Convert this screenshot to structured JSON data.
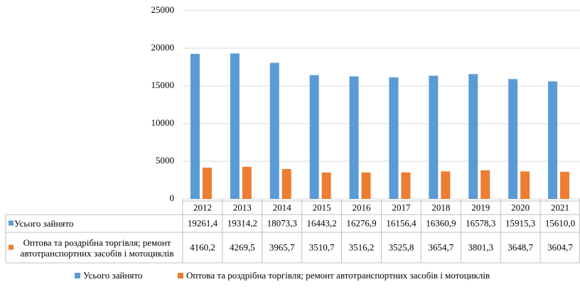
{
  "chart_data": {
    "type": "bar",
    "categories": [
      "2012",
      "2013",
      "2014",
      "2015",
      "2016",
      "2017",
      "2018",
      "2019",
      "2020",
      "2021"
    ],
    "series": [
      {
        "name": "Усього зайнято",
        "color": "#5b9bd5",
        "values": [
          19261.4,
          19314.2,
          18073.3,
          16443.2,
          16276.9,
          16156.4,
          16360.9,
          16578.3,
          15915.3,
          15610.0
        ],
        "value_labels": [
          "19261,4",
          "19314,2",
          "18073,3",
          "16443,2",
          "16276,9",
          "16156,4",
          "16360,9",
          "16578,3",
          "15915,3",
          "15610,0"
        ]
      },
      {
        "name": "Оптова та роздрібна торгівля; ремонт автотранспортних засобів і мотоциклів",
        "color": "#ed7d31",
        "values": [
          4160.2,
          4269.5,
          3965.7,
          3510.7,
          3516.2,
          3525.8,
          3654.7,
          3801.3,
          3648.7,
          3604.7
        ],
        "value_labels": [
          "4160,2",
          "4269,5",
          "3965,7",
          "3510,7",
          "3516,2",
          "3525,8",
          "3654,7",
          "3801,3",
          "3648,7",
          "3604,7"
        ]
      }
    ],
    "ylim": [
      0,
      25000
    ],
    "yticks": [
      0,
      5000,
      10000,
      15000,
      20000,
      25000
    ],
    "grid": true,
    "legend": "bottom"
  }
}
